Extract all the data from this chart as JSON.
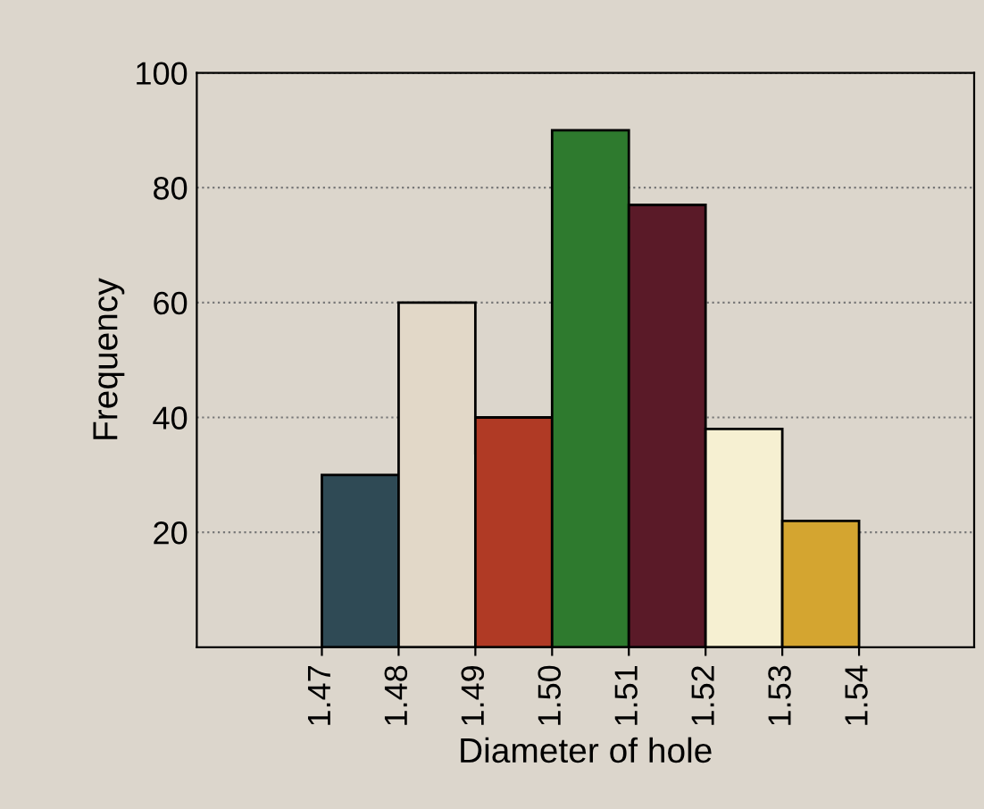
{
  "chart_data": {
    "type": "histogram",
    "xlabel": "Diameter of hole",
    "ylabel": "Frequency",
    "bins": [
      1.47,
      1.48,
      1.49,
      1.5,
      1.51,
      1.52,
      1.53,
      1.54
    ],
    "values": [
      30,
      60,
      40,
      90,
      77,
      38,
      22
    ],
    "colors": [
      "#2f4a55",
      "#e2d8c8",
      "#b03a25",
      "#2e7a2e",
      "#5a1a28",
      "#f6f0d2",
      "#d4a530"
    ],
    "xlim": [
      1.4537,
      1.555
    ],
    "ylim": [
      0,
      100
    ],
    "xticks": [
      {
        "value": 1.47,
        "label": "1.47"
      },
      {
        "value": 1.48,
        "label": "1.48"
      },
      {
        "value": 1.49,
        "label": "1.49"
      },
      {
        "value": 1.5,
        "label": "1.50"
      },
      {
        "value": 1.51,
        "label": "1.51"
      },
      {
        "value": 1.52,
        "label": "1.52"
      },
      {
        "value": 1.53,
        "label": "1.53"
      },
      {
        "value": 1.54,
        "label": "1.54"
      }
    ],
    "yticks": [
      20,
      40,
      60,
      80,
      100
    ],
    "grid": "y"
  }
}
